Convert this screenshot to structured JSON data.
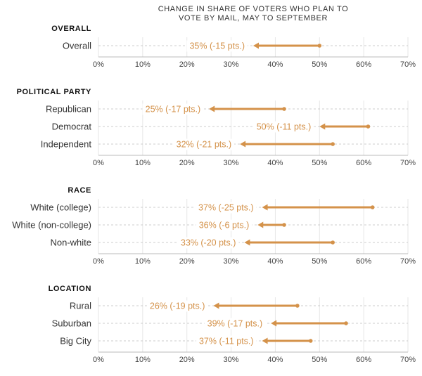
{
  "chart_data": {
    "type": "dumbbell",
    "title": "CHANGE IN SHARE OF VOTERS WHO PLAN TO VOTE BY MAIL, MAY TO SEPTEMBER",
    "title_lines": [
      "CHANGE IN SHARE OF VOTERS WHO PLAN TO",
      "VOTE BY MAIL, MAY TO SEPTEMBER"
    ],
    "xlim": [
      0,
      70
    ],
    "x_ticks": [
      "0%",
      "10%",
      "20%",
      "30%",
      "40%",
      "50%",
      "60%",
      "70%"
    ],
    "grid": true,
    "color": "#d4924a",
    "sections": [
      {
        "title": "OVERALL",
        "rows": [
          {
            "label": "Overall",
            "may": 50,
            "september": 35,
            "annotation": "35% (-15 pts.)"
          }
        ]
      },
      {
        "title": "POLITICAL PARTY",
        "rows": [
          {
            "label": "Republican",
            "may": 42,
            "september": 25,
            "annotation": "25% (-17 pts.)"
          },
          {
            "label": "Democrat",
            "may": 61,
            "september": 50,
            "annotation": "50% (-11 pts.)"
          },
          {
            "label": "Independent",
            "may": 53,
            "september": 32,
            "annotation": "32% (-21 pts.)"
          }
        ]
      },
      {
        "title": "RACE",
        "rows": [
          {
            "label": "White (college)",
            "may": 62,
            "september": 37,
            "annotation": "37% (-25 pts.)"
          },
          {
            "label": "White (non-college)",
            "may": 42,
            "september": 36,
            "annotation": "36% (-6 pts.)"
          },
          {
            "label": "Non-white",
            "may": 53,
            "september": 33,
            "annotation": "33% (-20 pts.)"
          }
        ]
      },
      {
        "title": "LOCATION",
        "rows": [
          {
            "label": "Rural",
            "may": 45,
            "september": 26,
            "annotation": "26% (-19 pts.)"
          },
          {
            "label": "Suburban",
            "may": 56,
            "september": 39,
            "annotation": "39% (-17 pts.)"
          },
          {
            "label": "Big City",
            "may": 48,
            "september": 37,
            "annotation": "37% (-11 pts.)"
          }
        ]
      }
    ]
  }
}
